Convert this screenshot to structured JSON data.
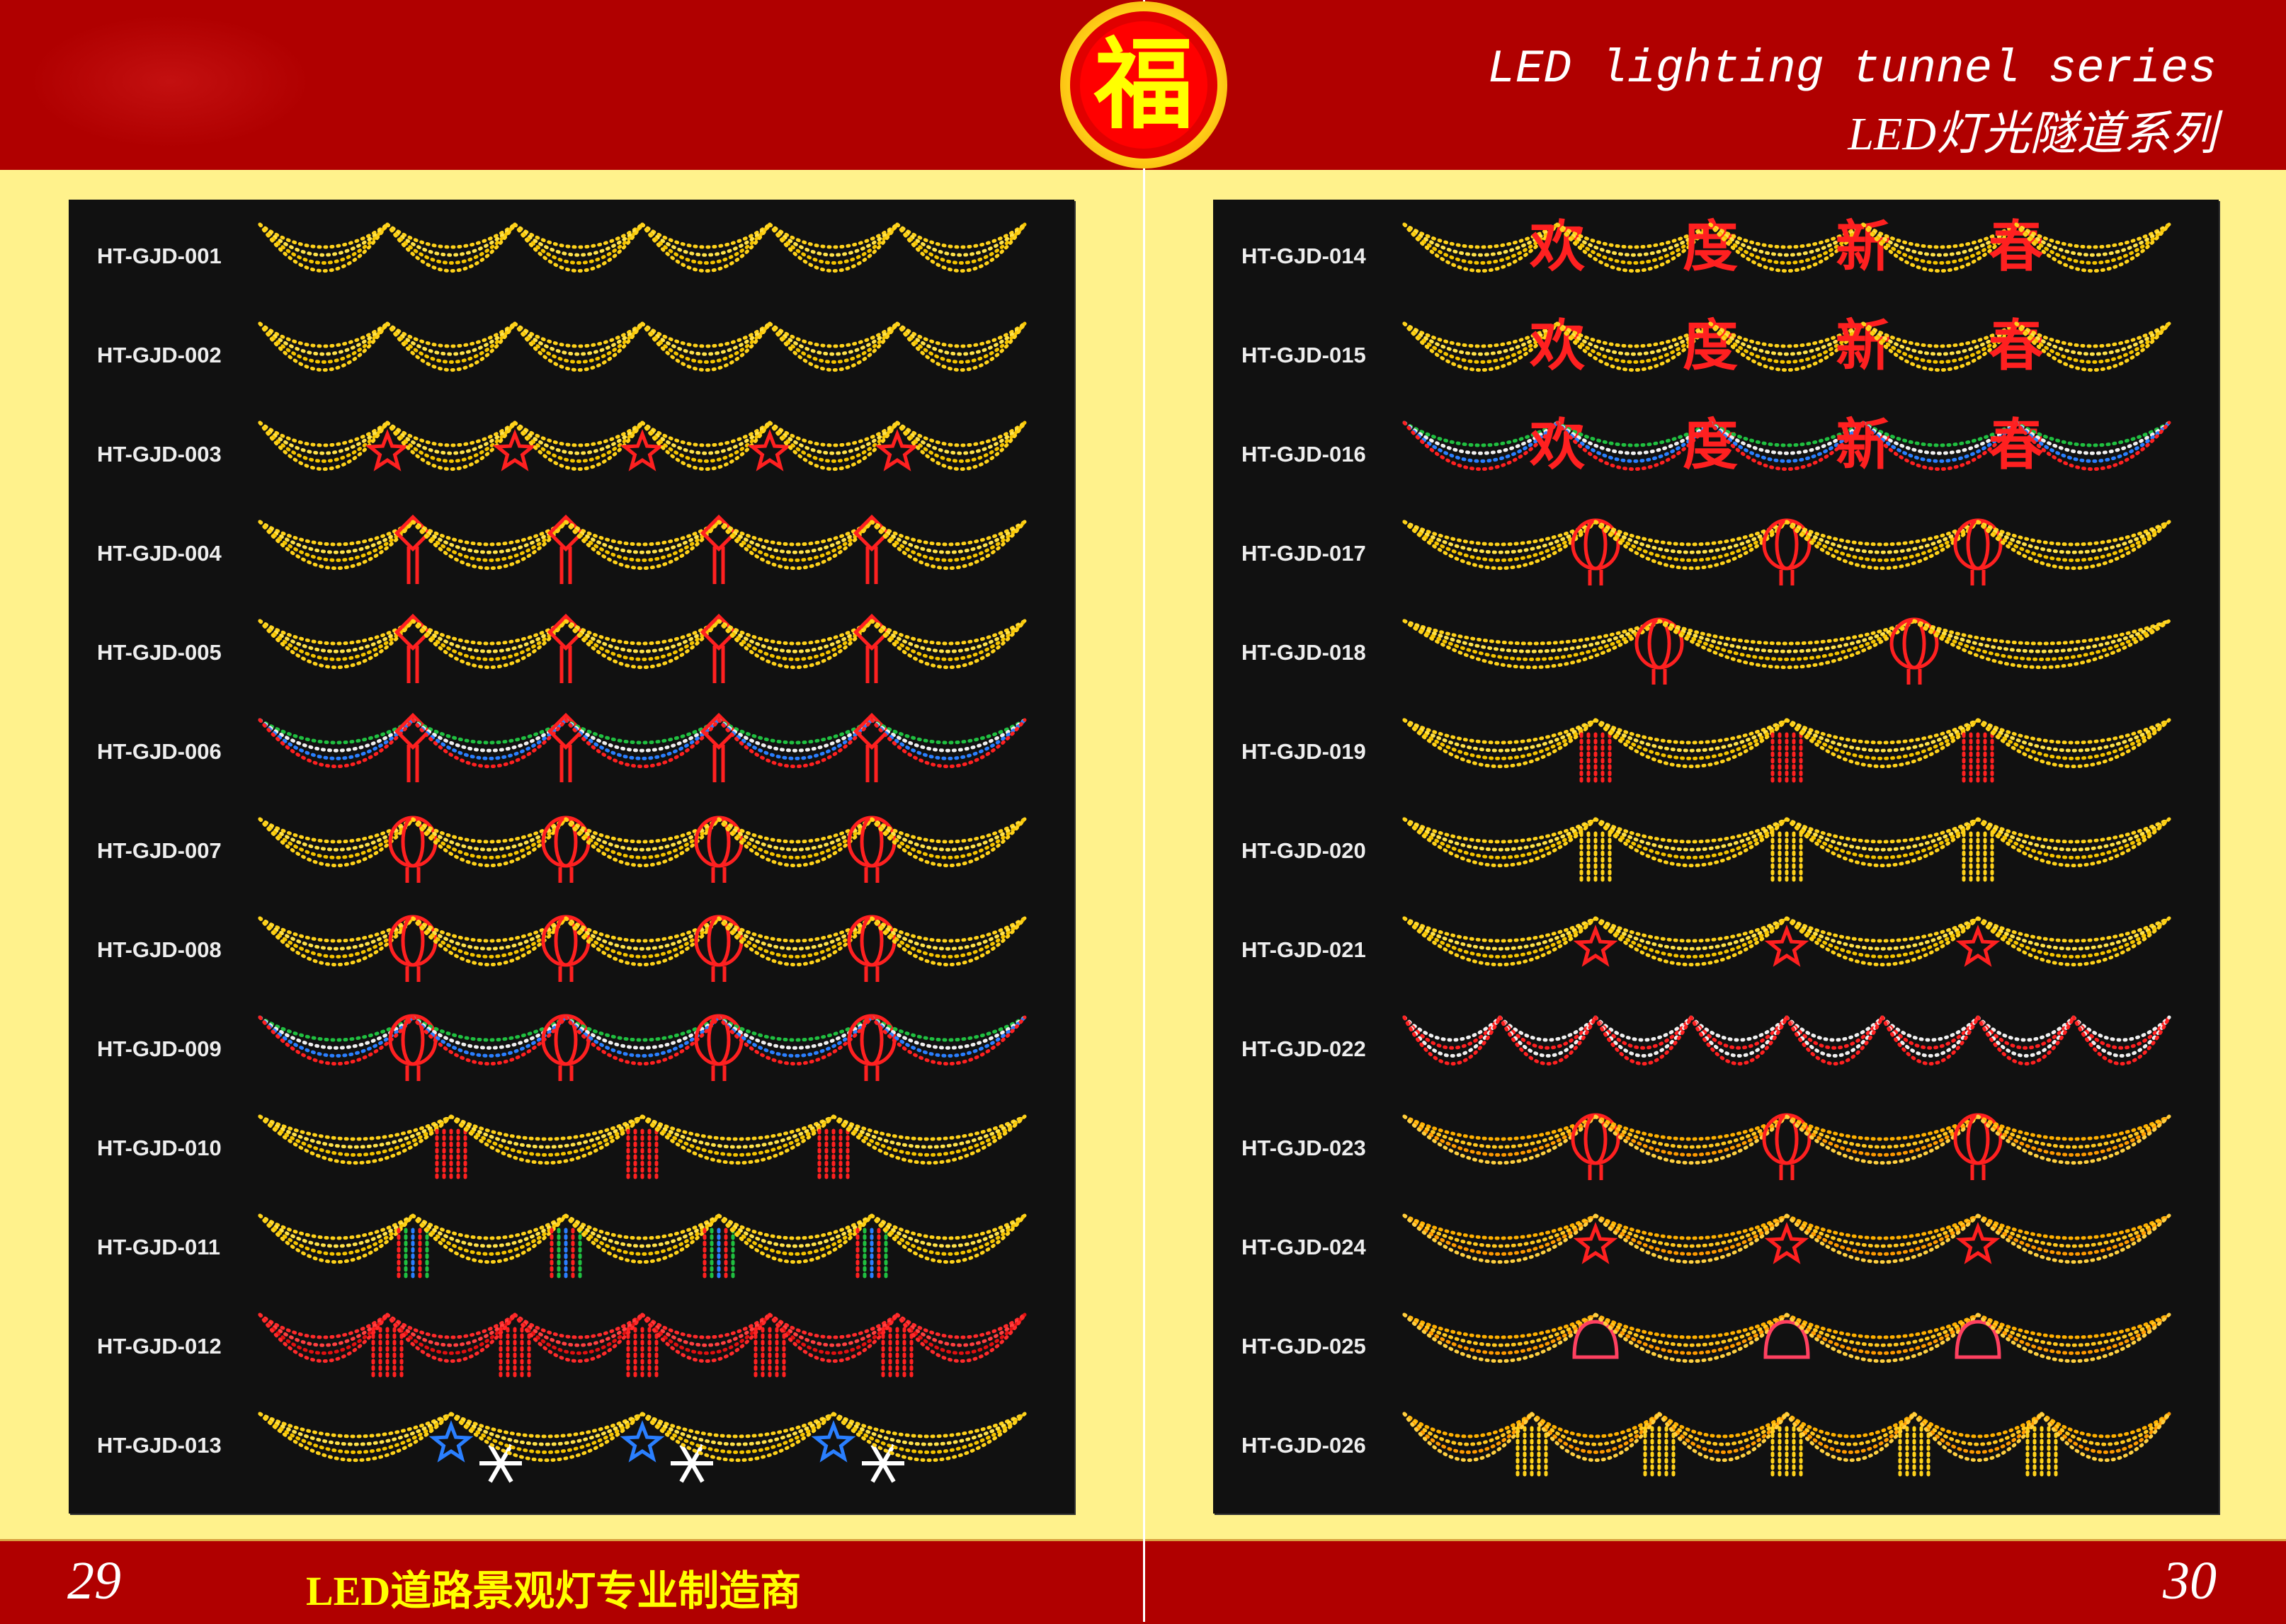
{
  "header": {
    "title_en": "LED lighting tunnel series",
    "title_cn": "LED灯光隧道系列",
    "logo_text": "福"
  },
  "footer": {
    "page_left": "29",
    "page_right": "30",
    "slogan": "LED道路景观灯专业制造商"
  },
  "colors": {
    "band": "#b00000",
    "background": "#fff28c",
    "panel": "#111111",
    "yellow": "#ffd21a",
    "red": "#ff2020"
  },
  "left_products": [
    {
      "code": "HT-GJD-001",
      "style": "yellow",
      "ornament": "none",
      "count": 6
    },
    {
      "code": "HT-GJD-002",
      "style": "yellow",
      "ornament": "none",
      "count": 6
    },
    {
      "code": "HT-GJD-003",
      "style": "yellow",
      "ornament": "red-star",
      "count": 6
    },
    {
      "code": "HT-GJD-004",
      "style": "yellow",
      "ornament": "chinese-knot",
      "count": 5
    },
    {
      "code": "HT-GJD-005",
      "style": "yellow",
      "ornament": "chinese-knot",
      "count": 5
    },
    {
      "code": "HT-GJD-006",
      "style": "multicolor",
      "ornament": "chinese-knot",
      "count": 5
    },
    {
      "code": "HT-GJD-007",
      "style": "yellow",
      "ornament": "lantern",
      "count": 5
    },
    {
      "code": "HT-GJD-008",
      "style": "yellow",
      "ornament": "lantern",
      "count": 5
    },
    {
      "code": "HT-GJD-009",
      "style": "multicolor",
      "ornament": "lantern",
      "count": 5
    },
    {
      "code": "HT-GJD-010",
      "style": "yellow",
      "ornament": "red-tassel",
      "count": 4
    },
    {
      "code": "HT-GJD-011",
      "style": "yellow",
      "ornament": "rgb-tassel",
      "count": 5
    },
    {
      "code": "HT-GJD-012",
      "style": "red",
      "ornament": "red-tassel",
      "count": 6
    },
    {
      "code": "HT-GJD-013",
      "style": "yellow",
      "ornament": "blue-star-snowflake",
      "count": 4
    }
  ],
  "right_products": [
    {
      "code": "HT-GJD-014",
      "style": "yellow",
      "ornament": "characters",
      "count": 5
    },
    {
      "code": "HT-GJD-015",
      "style": "yellow",
      "ornament": "characters",
      "count": 5
    },
    {
      "code": "HT-GJD-016",
      "style": "multicolor",
      "ornament": "characters",
      "count": 5
    },
    {
      "code": "HT-GJD-017",
      "style": "yellow",
      "ornament": "lantern",
      "count": 4
    },
    {
      "code": "HT-GJD-018",
      "style": "yellow",
      "ornament": "lantern",
      "count": 3
    },
    {
      "code": "HT-GJD-019",
      "style": "yellow",
      "ornament": "red-tassel",
      "count": 4
    },
    {
      "code": "HT-GJD-020",
      "style": "yellow",
      "ornament": "yellow-tassel",
      "count": 4
    },
    {
      "code": "HT-GJD-021",
      "style": "yellow",
      "ornament": "red-star",
      "count": 4
    },
    {
      "code": "HT-GJD-022",
      "style": "white-red",
      "ornament": "none",
      "count": 8
    },
    {
      "code": "HT-GJD-023",
      "style": "orange",
      "ornament": "lantern",
      "count": 4
    },
    {
      "code": "HT-GJD-024",
      "style": "orange",
      "ornament": "red-star",
      "count": 4
    },
    {
      "code": "HT-GJD-025",
      "style": "orange",
      "ornament": "bell",
      "count": 4
    },
    {
      "code": "HT-GJD-026",
      "style": "orange",
      "ornament": "yellow-tassel",
      "count": 6
    }
  ],
  "characters": [
    "欢",
    "度",
    "新",
    "春"
  ]
}
